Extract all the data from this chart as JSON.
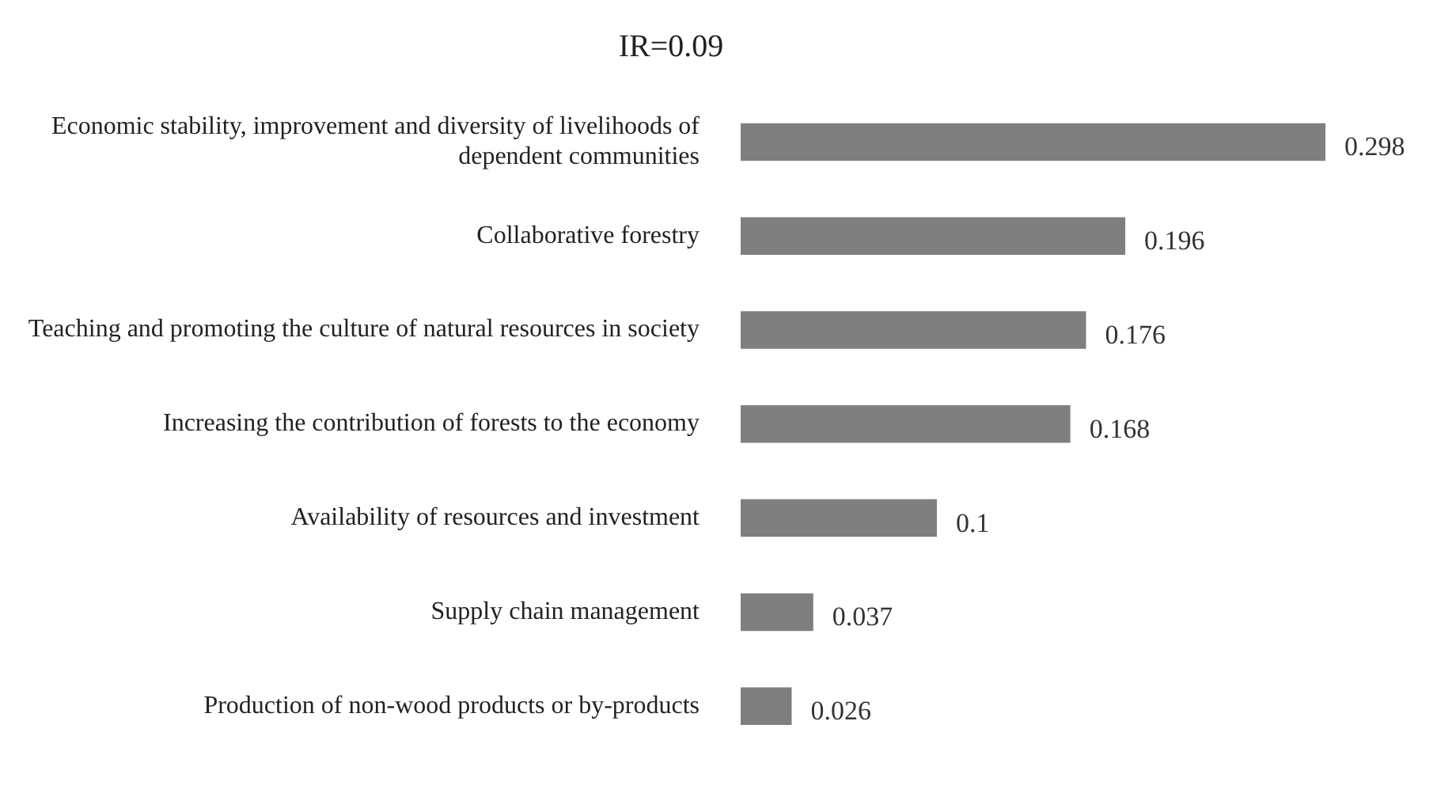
{
  "chart_data": {
    "type": "bar",
    "title": "IR=0.09",
    "orientation": "horizontal",
    "categories": [
      "Economic stability, improvement and diversity of livelihoods of dependent communities",
      "Collaborative forestry",
      "Teaching and promoting the culture of natural resources in society",
      "Increasing the contribution of forests to the economy",
      "Availability of resources and investment",
      "Supply chain management",
      "Production of non-wood products or by-products"
    ],
    "values": [
      0.298,
      0.196,
      0.176,
      0.168,
      0.1,
      0.037,
      0.026
    ],
    "color": "#7f7f7f",
    "data_labels": true,
    "legend": false
  }
}
